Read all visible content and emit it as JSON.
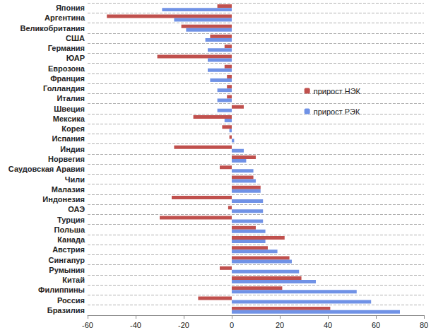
{
  "chart_data": {
    "type": "bar",
    "orientation": "horizontal",
    "categories": [
      "Япония",
      "Аргентина",
      "Великобритания",
      "США",
      "Германия",
      "ЮАР",
      "Еврозона",
      "Франция",
      "Голландия",
      "Италия",
      "Швеция",
      "Мексика",
      "Корея",
      "Испания",
      "Индия",
      "Норвегия",
      "Саудовская Аравия",
      "Чили",
      "Малазия",
      "Индонезия",
      "ОАЭ",
      "Турция",
      "Польша",
      "Канада",
      "Австрия",
      "Сингапур",
      "Румыния",
      "Китай",
      "Филиппины",
      "Россия",
      "Бразилия"
    ],
    "series": [
      {
        "name": "прирост НЭК",
        "color": "#c0504d",
        "values": [
          -6,
          -52,
          -21,
          -9,
          -3,
          -31,
          -3,
          -2,
          -2,
          -2,
          5,
          -16,
          -4,
          -1,
          -24,
          10,
          -5,
          9,
          12,
          -25,
          -1.5,
          -30,
          10,
          22,
          15,
          24,
          -5,
          29,
          21,
          -14,
          41
        ]
      },
      {
        "name": "прирост РЭК",
        "color": "#7092e6",
        "values": [
          -29,
          -24,
          -19,
          -11,
          -10,
          -10,
          -10,
          -9,
          -6,
          -6,
          -6,
          -3,
          -1,
          1,
          5,
          6,
          9,
          10,
          12,
          13,
          13,
          13,
          14,
          14,
          19,
          25,
          28,
          35,
          52,
          58,
          70
        ]
      }
    ],
    "xlim": [
      -60,
      80
    ],
    "xticks": [
      -60,
      -40,
      -20,
      0,
      20,
      40,
      60,
      80
    ],
    "grid": true,
    "legend": "right"
  }
}
